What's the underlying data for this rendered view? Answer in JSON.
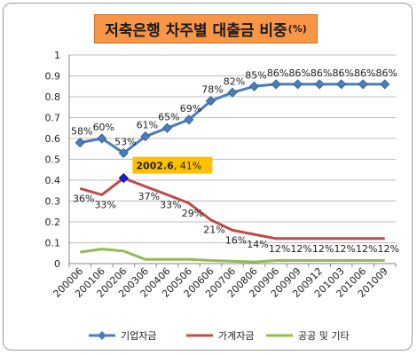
{
  "chart_data": {
    "type": "line",
    "title": "저축은행 차주별 대출금 비중",
    "title_unit": "(%)",
    "categories": [
      "200006",
      "200106",
      "200206",
      "200306",
      "200406",
      "200506",
      "200606",
      "200706",
      "200806",
      "200906",
      "200909",
      "200912",
      "201003",
      "201006",
      "201009"
    ],
    "ylim": [
      0,
      1
    ],
    "yticks": [
      "0",
      "0.1",
      "0.2",
      "0.3",
      "0.4",
      "0.5",
      "0.6",
      "0.7",
      "0.8",
      "0.9",
      "1"
    ],
    "grid": true,
    "legend_position": "bottom",
    "series": [
      {
        "name": "기업자금",
        "color": "#4a7ebb",
        "marker": "diamond",
        "values": [
          0.58,
          0.6,
          0.53,
          0.61,
          0.65,
          0.69,
          0.78,
          0.82,
          0.85,
          0.86,
          0.86,
          0.86,
          0.86,
          0.86,
          0.86
        ],
        "labels": [
          "58%",
          "60%",
          "53%",
          "61%",
          "65%",
          "69%",
          "78%",
          "82%",
          "85%",
          "86%",
          "86%",
          "86%",
          "86%",
          "86%",
          "86%"
        ]
      },
      {
        "name": "가계자금",
        "color": "#be4b48",
        "values": [
          0.36,
          0.33,
          0.41,
          0.37,
          0.33,
          0.29,
          0.21,
          0.16,
          0.14,
          0.12,
          0.12,
          0.12,
          0.12,
          0.12,
          0.12
        ],
        "labels": [
          "36%",
          "33%",
          "",
          "37%",
          "33%",
          "29%",
          "21%",
          "16%",
          "14%",
          "12%",
          "12%",
          "12%",
          "12%",
          "12%",
          "12%"
        ]
      },
      {
        "name": "공공 및 기타",
        "color": "#98b954",
        "values": [
          0.055,
          0.07,
          0.06,
          0.02,
          0.02,
          0.02,
          0.015,
          0.012,
          0.008,
          0.015,
          0.015,
          0.015,
          0.015,
          0.015,
          0.015
        ],
        "labels": []
      }
    ],
    "annotation": {
      "series_index": 1,
      "point_index": 2,
      "bold": "2002.6",
      "rest": ", 41%",
      "bg_color": "#ffc000",
      "marker_color": "#1f1fcf"
    }
  }
}
